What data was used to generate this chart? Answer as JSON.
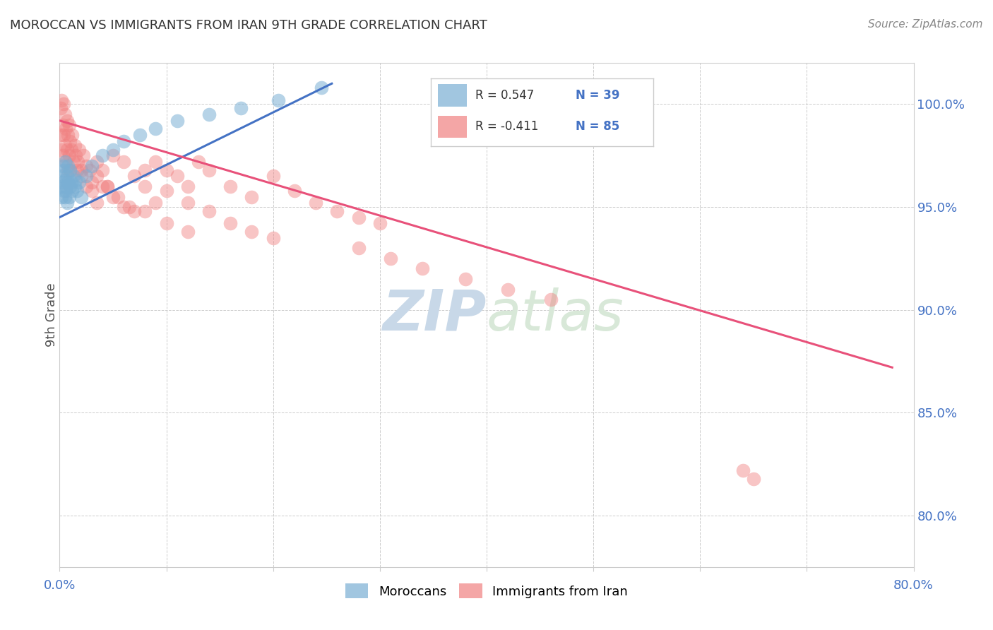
{
  "title": "MOROCCAN VS IMMIGRANTS FROM IRAN 9TH GRADE CORRELATION CHART",
  "source": "Source: ZipAtlas.com",
  "ylabel": "9th Grade",
  "yaxis_values": [
    1.0,
    0.95,
    0.9,
    0.85,
    0.8
  ],
  "yaxis_labels": [
    "100.0%",
    "95.0%",
    "90.0%",
    "85.0%",
    "80.0%"
  ],
  "xmin": 0.0,
  "xmax": 0.8,
  "ymin": 0.775,
  "ymax": 1.02,
  "blue_R": 0.547,
  "blue_N": 39,
  "pink_R": -0.411,
  "pink_N": 85,
  "blue_color": "#7AAFD4",
  "pink_color": "#F08080",
  "blue_line_color": "#4472C4",
  "pink_line_color": "#E8517A",
  "blue_scatter_x": [
    0.001,
    0.002,
    0.002,
    0.003,
    0.003,
    0.004,
    0.004,
    0.005,
    0.005,
    0.005,
    0.006,
    0.006,
    0.007,
    0.007,
    0.008,
    0.008,
    0.009,
    0.01,
    0.01,
    0.011,
    0.012,
    0.013,
    0.014,
    0.015,
    0.016,
    0.018,
    0.02,
    0.025,
    0.03,
    0.04,
    0.05,
    0.06,
    0.075,
    0.09,
    0.11,
    0.14,
    0.17,
    0.205,
    0.245
  ],
  "blue_scatter_y": [
    0.96,
    0.955,
    0.965,
    0.962,
    0.97,
    0.958,
    0.968,
    0.963,
    0.955,
    0.972,
    0.96,
    0.958,
    0.965,
    0.952,
    0.962,
    0.97,
    0.955,
    0.96,
    0.968,
    0.962,
    0.958,
    0.965,
    0.96,
    0.963,
    0.958,
    0.962,
    0.955,
    0.965,
    0.97,
    0.975,
    0.978,
    0.982,
    0.985,
    0.988,
    0.992,
    0.995,
    0.998,
    1.002,
    1.008
  ],
  "pink_scatter_x": [
    0.001,
    0.001,
    0.002,
    0.002,
    0.003,
    0.003,
    0.004,
    0.004,
    0.005,
    0.005,
    0.006,
    0.006,
    0.007,
    0.007,
    0.008,
    0.008,
    0.009,
    0.009,
    0.01,
    0.01,
    0.011,
    0.012,
    0.013,
    0.014,
    0.015,
    0.016,
    0.017,
    0.018,
    0.02,
    0.022,
    0.025,
    0.028,
    0.03,
    0.035,
    0.04,
    0.045,
    0.05,
    0.06,
    0.07,
    0.08,
    0.09,
    0.1,
    0.11,
    0.12,
    0.13,
    0.14,
    0.16,
    0.18,
    0.2,
    0.22,
    0.24,
    0.26,
    0.28,
    0.3,
    0.02,
    0.025,
    0.03,
    0.035,
    0.04,
    0.05,
    0.06,
    0.07,
    0.08,
    0.09,
    0.1,
    0.12,
    0.14,
    0.16,
    0.18,
    0.2,
    0.035,
    0.045,
    0.055,
    0.065,
    0.08,
    0.1,
    0.12,
    0.28,
    0.31,
    0.34,
    0.38,
    0.42,
    0.46,
    0.64,
    0.65
  ],
  "pink_scatter_y": [
    0.985,
    0.998,
    0.978,
    1.002,
    0.99,
    0.975,
    0.985,
    1.0,
    0.98,
    0.995,
    0.988,
    0.972,
    0.992,
    0.978,
    0.985,
    0.968,
    0.975,
    0.99,
    0.982,
    0.968,
    0.978,
    0.985,
    0.972,
    0.98,
    0.975,
    0.968,
    0.972,
    0.978,
    0.965,
    0.975,
    0.97,
    0.968,
    0.962,
    0.972,
    0.968,
    0.96,
    0.975,
    0.972,
    0.965,
    0.968,
    0.972,
    0.968,
    0.965,
    0.96,
    0.972,
    0.968,
    0.96,
    0.955,
    0.965,
    0.958,
    0.952,
    0.948,
    0.945,
    0.942,
    0.968,
    0.96,
    0.958,
    0.952,
    0.96,
    0.955,
    0.95,
    0.948,
    0.96,
    0.952,
    0.958,
    0.952,
    0.948,
    0.942,
    0.938,
    0.935,
    0.965,
    0.96,
    0.955,
    0.95,
    0.948,
    0.942,
    0.938,
    0.93,
    0.925,
    0.92,
    0.915,
    0.91,
    0.905,
    0.822,
    0.818
  ],
  "blue_trendline_x": [
    0.0,
    0.255
  ],
  "blue_trendline_y": [
    0.945,
    1.01
  ],
  "pink_trendline_x": [
    0.0,
    0.78
  ],
  "pink_trendline_y": [
    0.992,
    0.872
  ],
  "watermark_zip": "ZIP",
  "watermark_atlas": "atlas",
  "watermark_color": "#C8D8E8",
  "background_color": "#FFFFFF",
  "grid_color": "#CCCCCC",
  "legend_label_blue": "Moroccans",
  "legend_label_pink": "Immigrants from Iran",
  "right_tick_color": "#4472C4",
  "legend_R_color": "#333333",
  "legend_N_color": "#4472C4"
}
